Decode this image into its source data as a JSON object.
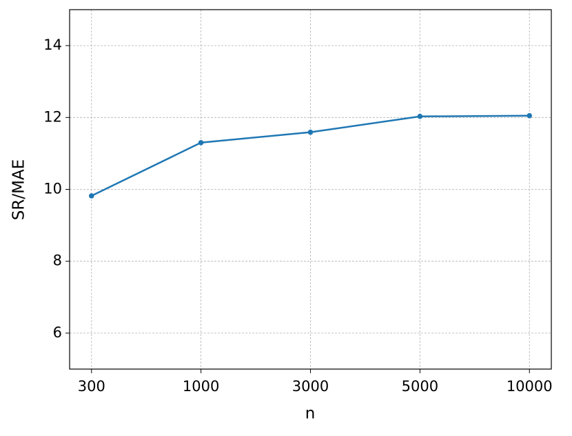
{
  "chart_data": {
    "type": "line",
    "x_label": "n",
    "y_label": "SR/MAE",
    "categories": [
      "300",
      "1000",
      "3000",
      "5000",
      "10000"
    ],
    "values": [
      9.82,
      11.3,
      11.59,
      12.03,
      12.05
    ],
    "color": "#1f77b4",
    "ylim": [
      5,
      15
    ],
    "yticks": [
      6,
      8,
      10,
      12,
      14
    ],
    "grid": true
  }
}
